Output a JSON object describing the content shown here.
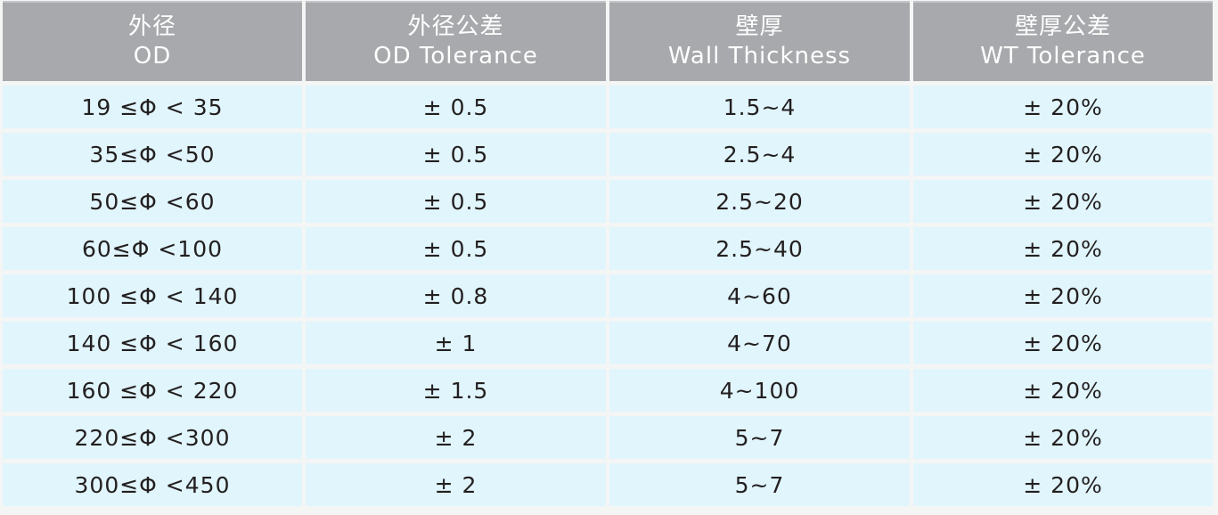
{
  "colors": {
    "header_bg": "#a7a9ac",
    "cell_bg": "#e1f5fc",
    "header_text": "#ffffff",
    "cell_text": "#231f20"
  },
  "headers": [
    {
      "zh": "外径",
      "en": "OD"
    },
    {
      "zh": "外径公差",
      "en": "OD Tolerance"
    },
    {
      "zh": "壁厚",
      "en": "Wall Thickness"
    },
    {
      "zh": "壁厚公差",
      "en": "WT Tolerance"
    }
  ],
  "rows": [
    [
      "19 ≤Φ < 35",
      "± 0.5",
      "1.5~4",
      "± 20%"
    ],
    [
      "35≤Φ <50",
      "± 0.5",
      "2.5~4",
      "± 20%"
    ],
    [
      "50≤Φ <60",
      "± 0.5",
      "2.5~20",
      "± 20%"
    ],
    [
      "60≤Φ <100",
      "± 0.5",
      "2.5~40",
      "± 20%"
    ],
    [
      "100 ≤Φ < 140",
      "± 0.8",
      "4~60",
      "± 20%"
    ],
    [
      "140 ≤Φ < 160",
      "± 1",
      "4~70",
      "± 20%"
    ],
    [
      "160 ≤Φ < 220",
      "± 1.5",
      "4~100",
      "± 20%"
    ],
    [
      "220≤Φ <300",
      "± 2",
      "5~7",
      "± 20%"
    ],
    [
      "300≤Φ <450",
      "± 2",
      "5~7",
      "± 20%"
    ]
  ]
}
